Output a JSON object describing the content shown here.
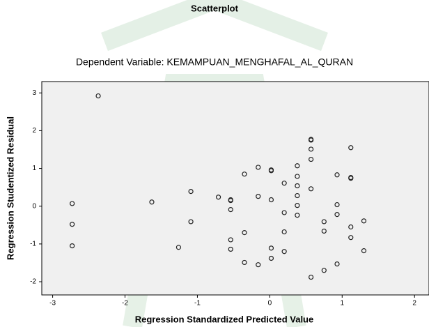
{
  "chart_data": {
    "type": "scatter",
    "title": "Scatterplot",
    "subtitle": "Dependent Variable: KEMAMPUAN_MENGHAFAL_AL_QURAN",
    "x_label": "Regression Standardized Predicted Value",
    "y_label": "Regression Studentized Residual",
    "xlim": [
      -3.15,
      2.2
    ],
    "ylim": [
      -2.35,
      3.3
    ],
    "xticks": [
      -3,
      -2,
      -1,
      0,
      1,
      2
    ],
    "yticks": [
      -2,
      -1,
      0,
      1,
      2,
      3
    ],
    "grid": false,
    "series": [
      {
        "color": "#222222",
        "x": [
          -2.73,
          -2.73,
          -2.73,
          -2.37,
          -1.63,
          -1.26,
          -1.09,
          -1.09,
          -0.71,
          -0.54,
          -0.54,
          -0.54,
          -0.54,
          -0.54,
          -0.35,
          -0.35,
          -0.35,
          -0.16,
          -0.16,
          -0.16,
          0.02,
          0.02,
          0.02,
          0.02,
          0.02,
          0.2,
          0.2,
          0.2,
          0.2,
          0.38,
          0.38,
          0.38,
          0.38,
          0.38,
          0.38,
          0.57,
          0.57,
          0.57,
          0.57,
          0.57,
          0.57,
          0.75,
          0.75,
          0.75,
          0.93,
          0.93,
          0.93,
          0.93,
          1.12,
          1.12,
          1.12,
          1.12,
          1.12,
          1.3,
          1.3
        ],
        "values": [
          0.07,
          -0.48,
          -1.05,
          2.92,
          0.11,
          -1.09,
          0.39,
          -0.41,
          0.24,
          0.17,
          0.15,
          -0.09,
          -0.89,
          -1.14,
          0.85,
          -0.7,
          -1.49,
          1.03,
          0.26,
          -1.55,
          0.96,
          0.94,
          0.17,
          -1.11,
          -1.38,
          0.61,
          -0.17,
          -0.68,
          -1.2,
          1.07,
          0.79,
          0.54,
          0.28,
          0.02,
          -0.24,
          1.77,
          1.75,
          1.51,
          1.24,
          0.46,
          -1.88,
          -0.41,
          -0.66,
          -1.7,
          0.83,
          0.04,
          -0.22,
          -1.53,
          1.55,
          0.76,
          0.74,
          -0.55,
          -0.83,
          -0.39,
          -1.18
        ]
      }
    ]
  }
}
